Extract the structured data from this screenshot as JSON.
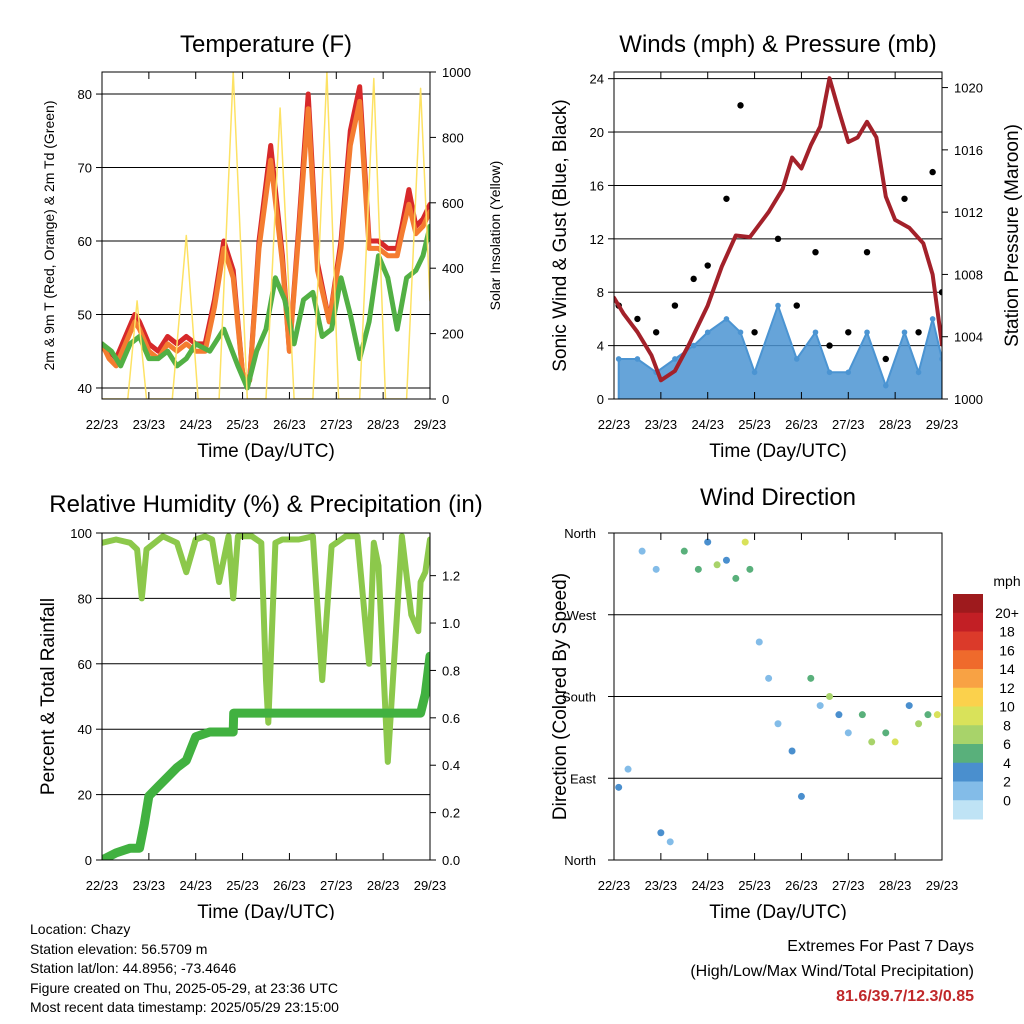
{
  "colors": {
    "temp_2m": "#d7292a",
    "temp_9m": "#f47c30",
    "dewpoint": "#52b044",
    "insolation": "#fde264",
    "wind": "#4b94d2",
    "gust": "#000000",
    "pressure": "#a3212a",
    "rh": "#8cc84b",
    "precip": "#41b140",
    "grid": "#000000"
  },
  "x_ticks": [
    "22/23",
    "23/23",
    "24/23",
    "25/23",
    "26/23",
    "27/23",
    "28/23",
    "29/23"
  ],
  "chart_data": [
    {
      "id": "temperature",
      "type": "line",
      "title": "Temperature (F)",
      "xlabel": "Time (Day/UTC)",
      "ylabel": "2m & 9m T (Red, Orange) & 2m Td (Green)",
      "ylabel_right": "Solar Insolation (Yellow)",
      "xlim": [
        0,
        7
      ],
      "ylim": [
        38.5,
        83
      ],
      "y_ticks": [
        40,
        50,
        60,
        70,
        80
      ],
      "ylim_right": [
        0,
        1000
      ],
      "y_ticks_right": [
        0,
        200,
        400,
        600,
        800,
        1000
      ],
      "series": [
        {
          "name": "2m T",
          "color_key": "temp_2m",
          "x": [
            0,
            0.15,
            0.3,
            0.5,
            0.7,
            0.8,
            1.0,
            1.2,
            1.4,
            1.6,
            1.8,
            2.0,
            2.2,
            2.4,
            2.6,
            2.8,
            3.0,
            3.15,
            3.35,
            3.6,
            3.85,
            4.0,
            4.2,
            4.4,
            4.6,
            4.85,
            5.1,
            5.3,
            5.5,
            5.7,
            5.9,
            6.1,
            6.3,
            6.4,
            6.55,
            6.7,
            6.85,
            7.0
          ],
          "y": [
            46,
            45,
            44,
            47,
            50,
            49,
            46,
            45,
            47,
            46,
            47,
            46,
            46,
            52,
            60,
            56,
            42,
            41,
            60,
            73,
            58,
            45,
            62,
            80,
            57,
            49,
            60,
            75,
            81,
            60,
            60,
            59,
            59,
            62,
            67,
            62,
            63,
            65
          ]
        },
        {
          "name": "9m T",
          "color_key": "temp_9m",
          "x": [
            0,
            0.15,
            0.3,
            0.5,
            0.7,
            0.8,
            1.0,
            1.2,
            1.4,
            1.6,
            1.8,
            2.0,
            2.2,
            2.4,
            2.6,
            2.8,
            3.0,
            3.15,
            3.35,
            3.6,
            3.85,
            4.0,
            4.2,
            4.4,
            4.6,
            4.85,
            5.1,
            5.3,
            5.5,
            5.7,
            5.9,
            6.1,
            6.3,
            6.4,
            6.55,
            6.7,
            6.85,
            7.0
          ],
          "y": [
            46,
            44,
            43,
            46,
            49,
            48,
            45,
            44,
            46,
            45,
            46,
            45,
            45,
            51,
            59,
            55,
            42,
            41,
            59,
            71,
            57,
            45,
            61,
            78,
            56,
            49,
            59,
            73,
            79,
            59,
            59,
            58,
            58,
            61,
            65,
            61,
            62,
            64
          ]
        },
        {
          "name": "2m Td",
          "color_key": "dewpoint",
          "x": [
            0,
            0.2,
            0.4,
            0.6,
            0.8,
            1.0,
            1.2,
            1.4,
            1.6,
            1.8,
            2.0,
            2.3,
            2.6,
            2.9,
            3.1,
            3.3,
            3.5,
            3.7,
            3.9,
            4.1,
            4.3,
            4.5,
            4.7,
            4.9,
            5.1,
            5.3,
            5.5,
            5.7,
            5.9,
            6.1,
            6.3,
            6.5,
            6.7,
            6.85,
            7.0
          ],
          "y": [
            46,
            45,
            43,
            46,
            47,
            44,
            44,
            45,
            43,
            44,
            46,
            45,
            48,
            43,
            40,
            45,
            48,
            55,
            52,
            46,
            52,
            53,
            47,
            48,
            55,
            50,
            44,
            49,
            58,
            55,
            48,
            55,
            56,
            58,
            62
          ]
        },
        {
          "name": "Solar Insolation",
          "color_key": "insolation",
          "axis": "right",
          "x": [
            0.0,
            0.55,
            0.75,
            0.95,
            1.5,
            1.8,
            2.05,
            2.5,
            2.8,
            3.1,
            3.5,
            3.8,
            4.1,
            4.5,
            4.8,
            5.05,
            5.5,
            5.8,
            6.05,
            6.5,
            6.8,
            7.0
          ],
          "y": [
            0,
            0,
            300,
            0,
            0,
            500,
            0,
            0,
            1000,
            0,
            0,
            890,
            0,
            0,
            1000,
            0,
            0,
            980,
            0,
            0,
            950,
            300
          ]
        }
      ]
    },
    {
      "id": "winds",
      "type": "scatter",
      "title": "Winds (mph) & Pressure (mb)",
      "xlabel": "Time (Day/UTC)",
      "ylabel": "Sonic Wind & Gust (Blue, Black)",
      "ylabel_right": "Station Pressure (Maroon)",
      "xlim": [
        0,
        7
      ],
      "ylim": [
        0,
        24.5
      ],
      "y_ticks": [
        0,
        4,
        8,
        12,
        16,
        20,
        24
      ],
      "ylim_right": [
        1000,
        1021
      ],
      "y_ticks_right": [
        1000,
        1004,
        1008,
        1012,
        1016,
        1020
      ],
      "series": [
        {
          "name": "Sonic Wind",
          "color_key": "wind",
          "x": [
            0.1,
            0.5,
            0.9,
            1.3,
            1.7,
            2.0,
            2.4,
            2.7,
            3.0,
            3.5,
            3.9,
            4.3,
            4.6,
            5.0,
            5.4,
            5.8,
            6.2,
            6.5,
            6.8,
            7.0
          ],
          "y": [
            3,
            3,
            2,
            3,
            4,
            5,
            6,
            5,
            2,
            7,
            3,
            5,
            2,
            2,
            5,
            1,
            5,
            2,
            6,
            3
          ]
        },
        {
          "name": "Gust",
          "color_key": "gust",
          "x": [
            0.1,
            0.5,
            0.9,
            1.3,
            1.7,
            2.0,
            2.4,
            2.7,
            3.0,
            3.5,
            3.9,
            4.3,
            4.6,
            5.0,
            5.4,
            5.8,
            6.2,
            6.5,
            6.8,
            7.0
          ],
          "y": [
            7,
            6,
            5,
            7,
            9,
            10,
            15,
            22,
            5,
            12,
            7,
            11,
            4,
            5,
            11,
            3,
            15,
            5,
            17,
            8
          ]
        },
        {
          "name": "Station Pressure",
          "color_key": "pressure",
          "axis": "right",
          "x": [
            0,
            0.2,
            0.5,
            0.8,
            1.0,
            1.3,
            1.6,
            2.0,
            2.3,
            2.6,
            2.9,
            3.0,
            3.3,
            3.6,
            3.8,
            4.0,
            4.2,
            4.4,
            4.6,
            4.8,
            5.0,
            5.2,
            5.4,
            5.6,
            5.8,
            6.0,
            6.3,
            6.6,
            6.8,
            7.0
          ],
          "y": [
            1006.5,
            1005.5,
            1004.3,
            1002.8,
            1001.2,
            1001.8,
            1003.5,
            1006,
            1008.5,
            1010.5,
            1010.4,
            1010.8,
            1012,
            1013.5,
            1015.5,
            1014.8,
            1016.3,
            1017.5,
            1020.6,
            1018.5,
            1016.5,
            1016.8,
            1017.8,
            1016.8,
            1013,
            1011.5,
            1011,
            1010,
            1008,
            1003.5
          ]
        }
      ]
    },
    {
      "id": "humidity",
      "type": "line",
      "title": "Relative Humidity (%) & Precipitation (in)",
      "xlabel": "Time (Day/UTC)",
      "ylabel": "Percent & Total Rainfall",
      "xlim": [
        0,
        7
      ],
      "ylim": [
        0,
        100
      ],
      "y_ticks": [
        0,
        20,
        40,
        60,
        80,
        100
      ],
      "ylim_right": [
        0,
        1.38
      ],
      "y_ticks_right": [
        "0.0",
        "0.2",
        "0.4",
        "0.6",
        "0.8",
        "1.0",
        "1.2"
      ],
      "series": [
        {
          "name": "Relative Humidity",
          "color_key": "rh",
          "x": [
            0,
            0.3,
            0.6,
            0.75,
            0.85,
            0.95,
            1.3,
            1.6,
            1.8,
            2.0,
            2.2,
            2.35,
            2.5,
            2.7,
            2.8,
            2.9,
            3.2,
            3.4,
            3.5,
            3.55,
            3.7,
            3.85,
            4.2,
            4.5,
            4.7,
            4.9,
            5.2,
            5.45,
            5.7,
            5.8,
            5.9,
            6.1,
            6.4,
            6.6,
            6.75,
            6.8,
            6.9,
            7.0
          ],
          "y": [
            97,
            98,
            97,
            95,
            80,
            95,
            99,
            97,
            88,
            98,
            99,
            98,
            85,
            99,
            80,
            99,
            99,
            97,
            55,
            42,
            97,
            98,
            98,
            99,
            55,
            96,
            99,
            99,
            60,
            97,
            90,
            30,
            99,
            75,
            70,
            85,
            88,
            98
          ]
        },
        {
          "name": "Total Precipitation",
          "color_key": "precip",
          "axis": "right",
          "x": [
            0,
            0.3,
            0.6,
            0.8,
            0.9,
            1.0,
            1.2,
            1.4,
            1.6,
            1.8,
            2.0,
            2.3,
            2.8,
            2.81,
            3.5,
            6.8,
            6.9,
            7.0
          ],
          "y": [
            0,
            0.03,
            0.05,
            0.05,
            0.15,
            0.27,
            0.31,
            0.35,
            0.39,
            0.42,
            0.52,
            0.54,
            0.54,
            0.62,
            0.62,
            0.62,
            0.7,
            0.86
          ]
        }
      ]
    },
    {
      "id": "wind_direction",
      "type": "scatter",
      "title": "Wind Direction",
      "xlabel": "Time (Day/UTC)",
      "ylabel": "Direction (Colored By Speed)",
      "xlim": [
        0,
        7
      ],
      "y_categories": [
        "North",
        "East",
        "South",
        "West",
        "North"
      ],
      "ylim_degrees": [
        0,
        360
      ],
      "color_scale": {
        "title": "mph",
        "labels": [
          "20+",
          "18",
          "16",
          "14",
          "12",
          "10",
          "8",
          "6",
          "4",
          "2",
          "0"
        ],
        "colors": [
          "#9e1a1d",
          "#c21f25",
          "#db3a2a",
          "#ef6a2c",
          "#f8a244",
          "#fbd14c",
          "#d9e25a",
          "#a8d36a",
          "#59b07b",
          "#4a8fce",
          "#83bce8",
          "#bfe3f5"
        ]
      },
      "points": {
        "x": [
          0.1,
          0.3,
          0.6,
          0.9,
          1.0,
          1.2,
          1.5,
          1.8,
          2.0,
          2.2,
          2.4,
          2.6,
          2.8,
          2.9,
          3.1,
          3.3,
          3.5,
          3.8,
          4.0,
          4.2,
          4.4,
          4.6,
          4.8,
          5.0,
          5.3,
          5.5,
          5.8,
          6.0,
          6.3,
          6.5,
          6.7,
          6.9
        ],
        "deg": [
          80,
          100,
          340,
          320,
          30,
          20,
          340,
          320,
          350,
          325,
          330,
          310,
          350,
          320,
          240,
          200,
          150,
          120,
          70,
          200,
          170,
          180,
          160,
          140,
          160,
          130,
          140,
          130,
          170,
          150,
          160,
          160
        ],
        "speed": [
          3,
          2,
          1,
          2,
          3,
          2,
          5,
          6,
          4,
          7,
          4,
          5,
          10,
          6,
          1,
          2,
          1,
          3,
          4,
          5,
          2,
          7,
          3,
          1,
          5,
          8,
          6,
          9,
          4,
          7,
          6,
          10
        ]
      }
    }
  ],
  "info": {
    "location": "Location: Chazy",
    "elevation": "Station elevation: 56.5709 m",
    "latlon": "Station lat/lon: 44.8956; -73.4646",
    "created": "Figure created on Thu, 2025-05-29, at 23:36 UTC",
    "recent": "Most recent data timestamp: 2025/05/29 23:15:00"
  },
  "extremes": {
    "title": "Extremes For Past 7 Days",
    "subtitle": "(High/Low/Max Wind/Total Precipitation)",
    "values": "81.6/39.7/12.3/0.85"
  }
}
